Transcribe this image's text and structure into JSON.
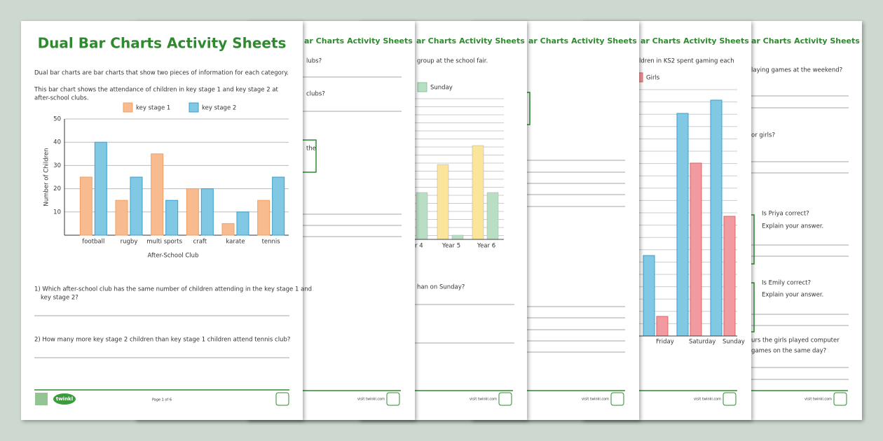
{
  "front": {
    "title": "Dual Bar Charts Activity Sheets",
    "intro": "Dual bar charts are bar charts that show two pieces of information for each category.",
    "chart_intro": [
      "This bar chart shows the attendance of children in key stage 1 and key stage 2 at",
      "after-school clubs."
    ],
    "chart": {
      "type": "bar",
      "categories": [
        "football",
        "rugby",
        "multi sports",
        "craft",
        "karate",
        "tennis"
      ],
      "series": [
        {
          "name": "key stage 1",
          "color": "#f8bb90",
          "values": [
            25,
            15,
            35,
            20,
            5,
            15
          ]
        },
        {
          "name": "key stage 2",
          "color": "#80c8e4",
          "values": [
            40,
            25,
            15,
            20,
            10,
            25
          ]
        }
      ],
      "y_label": "Number of Children",
      "x_label": "After-School Club",
      "ylim": [
        0,
        50
      ],
      "yticks": [
        10,
        20,
        30,
        40,
        50
      ],
      "grid": true
    },
    "questions": [
      [
        "1) Which after-school club has the same number of children attending in the key stage 1 and",
        "key stage 2?"
      ],
      [
        "2) How many more key stage 2 children than key stage 1 children attend tennis club?"
      ]
    ],
    "footer": {
      "brand": "twinkl",
      "page": "Page 1 of 6"
    }
  },
  "back_sheets": [
    {
      "title": "ar Charts Activity Sheets",
      "texts": [
        "lubs?",
        "clubs?",
        "the"
      ],
      "footer": "visit twinkl.com"
    },
    {
      "title": "ar Charts Activity Sheets",
      "texts": [
        "group at the school fair.",
        "Sunday",
        "r 4",
        "Year 5",
        "Year 6",
        "han on Sunday?"
      ],
      "footer": "visit twinkl.com"
    },
    {
      "title": "ar Charts Activity Sheets",
      "texts": [],
      "footer": "visit twinkl.com"
    },
    {
      "title": "ar Charts Activity Sheets",
      "texts": [
        "ldren in KS2 spent gaming each",
        "Girls",
        "Friday",
        "Saturday",
        "Sunday"
      ],
      "footer": "visit twinkl.com"
    },
    {
      "title": "ar Charts Activity Sheets",
      "texts": [
        "laying games at the weekend?",
        "or girls?",
        "Is Priya correct?",
        "Explain your answer.",
        "Is Emily correct?",
        "Explain your answer.",
        "urs the girls played computer",
        "games on the same day?"
      ],
      "footer": "visit twinkl.com"
    }
  ]
}
